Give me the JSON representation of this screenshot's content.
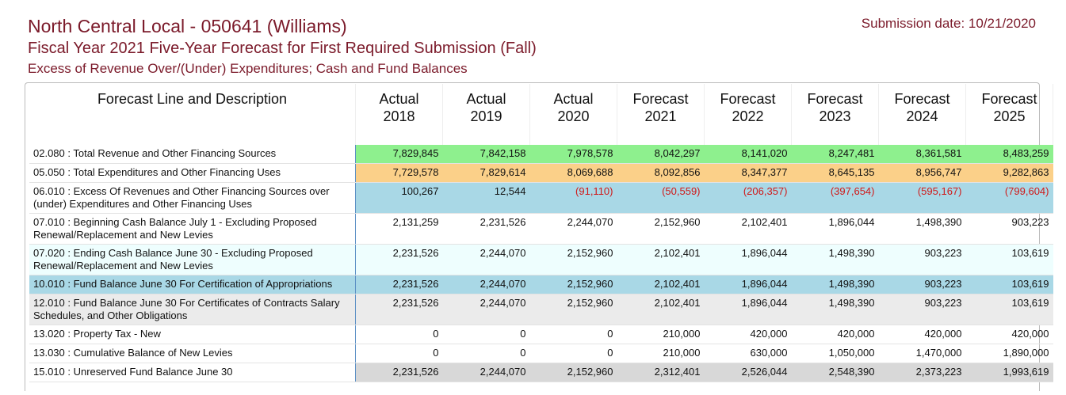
{
  "header": {
    "title": "North Central Local - 050641 (Williams)",
    "subtitle": "Fiscal Year 2021 Five-Year Forecast for First Required Submission (Fall)",
    "section": "Excess of Revenue Over/(Under) Expenditures; Cash and Fund Balances",
    "submission_date": "Submission date: 10/21/2020"
  },
  "table": {
    "description_header": "Forecast Line and Description",
    "columns": [
      {
        "kind": "Actual",
        "year": "2018"
      },
      {
        "kind": "Actual",
        "year": "2019"
      },
      {
        "kind": "Actual",
        "year": "2020"
      },
      {
        "kind": "Forecast",
        "year": "2021"
      },
      {
        "kind": "Forecast",
        "year": "2022"
      },
      {
        "kind": "Forecast",
        "year": "2023"
      },
      {
        "kind": "Forecast",
        "year": "2024"
      },
      {
        "kind": "Forecast",
        "year": "2025"
      }
    ],
    "rows": [
      {
        "description": "02.080 : Total Revenue and Other Financing Sources",
        "values": [
          "7,829,845",
          "7,842,158",
          "7,978,578",
          "8,042,297",
          "8,141,020",
          "8,247,481",
          "8,361,581",
          "8,483,259"
        ]
      },
      {
        "description": "05.050 : Total Expenditures and Other Financing Uses",
        "values": [
          "7,729,578",
          "7,829,614",
          "8,069,688",
          "8,092,856",
          "8,347,377",
          "8,645,135",
          "8,956,747",
          "9,282,863"
        ]
      },
      {
        "description": "06.010 : Excess Of Revenues and Other Financing Sources over (under) Expenditures and Other Financing Uses",
        "values": [
          "100,267",
          "12,544",
          "(91,110)",
          "(50,559)",
          "(206,357)",
          "(397,654)",
          "(595,167)",
          "(799,604)"
        ]
      },
      {
        "description": "07.010 : Beginning Cash Balance July 1 - Excluding Proposed Renewal/Replacement and New Levies",
        "values": [
          "2,131,259",
          "2,231,526",
          "2,244,070",
          "2,152,960",
          "2,102,401",
          "1,896,044",
          "1,498,390",
          "903,223"
        ]
      },
      {
        "description": "07.020 : Ending Cash Balance June 30 - Excluding Proposed Renewal/Replacement and New Levies",
        "values": [
          "2,231,526",
          "2,244,070",
          "2,152,960",
          "2,102,401",
          "1,896,044",
          "1,498,390",
          "903,223",
          "103,619"
        ]
      },
      {
        "description": "10.010 : Fund Balance June 30 For Certification of Appropriations",
        "values": [
          "2,231,526",
          "2,244,070",
          "2,152,960",
          "2,102,401",
          "1,896,044",
          "1,498,390",
          "903,223",
          "103,619"
        ]
      },
      {
        "description": "12.010 : Fund Balance June 30 For Certificates of Contracts Salary Schedules, and Other Obligations",
        "values": [
          "2,231,526",
          "2,244,070",
          "2,152,960",
          "2,102,401",
          "1,896,044",
          "1,498,390",
          "903,223",
          "103,619"
        ]
      },
      {
        "description": "13.020 : Property Tax - New",
        "values": [
          "0",
          "0",
          "0",
          "210,000",
          "420,000",
          "420,000",
          "420,000",
          "420,000"
        ]
      },
      {
        "description": "13.030 : Cumulative Balance of New Levies",
        "values": [
          "0",
          "0",
          "0",
          "210,000",
          "630,000",
          "1,050,000",
          "1,470,000",
          "1,890,000"
        ]
      },
      {
        "description": "15.010 : Unreserved Fund Balance June 30",
        "values": [
          "2,231,526",
          "2,244,070",
          "2,152,960",
          "2,312,401",
          "2,526,044",
          "2,548,390",
          "2,373,223",
          "1,993,619"
        ]
      }
    ]
  }
}
